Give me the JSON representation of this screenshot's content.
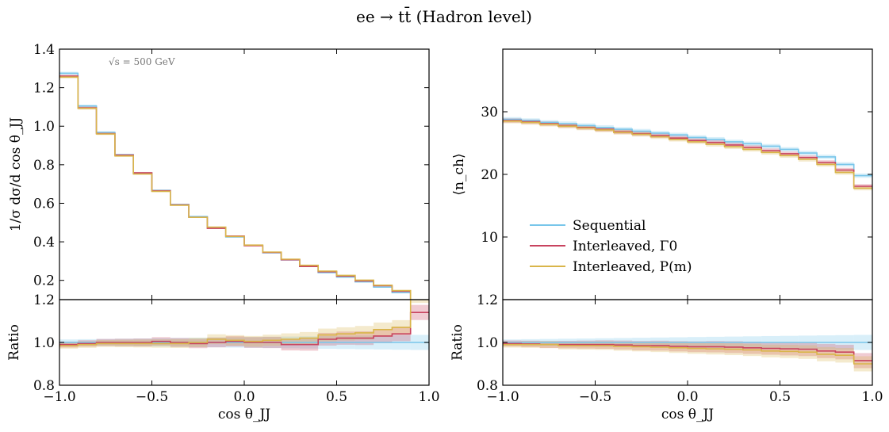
{
  "figure": {
    "title": "ee → tt̄ (Hadron level)"
  },
  "legend": [
    {
      "name": "Sequential",
      "color": "#78c6ea"
    },
    {
      "name": "Interleaved, Γ0",
      "color": "#c8435f"
    },
    {
      "name": "Interleaved, P(m)",
      "color": "#d9b54a"
    }
  ],
  "chart_data": [
    {
      "type": "line",
      "panel": "left-top",
      "title": "",
      "xlabel": "",
      "ylabel": "1/σ dσ/d cos θ_JJ",
      "annotation": "√s = 500 GeV",
      "step": true,
      "xlim": [
        -1.0,
        1.0
      ],
      "ylim": [
        0.1,
        1.4
      ],
      "yticks": [
        "0.2",
        "0.4",
        "0.6",
        "0.8",
        "1.0",
        "1.2",
        "1.4"
      ],
      "yticks_values": [
        0.2,
        0.4,
        0.6,
        0.8,
        1.0,
        1.2,
        1.4
      ],
      "bin_edges": [
        -1.0,
        -0.9,
        -0.8,
        -0.7,
        -0.6,
        -0.5,
        -0.4,
        -0.3,
        -0.2,
        -0.1,
        0.0,
        0.1,
        0.2,
        0.3,
        0.4,
        0.5,
        0.6,
        0.7,
        0.8,
        0.9,
        1.0
      ],
      "series": [
        {
          "name": "Sequential",
          "values": [
            1.275,
            1.105,
            0.968,
            0.852,
            0.757,
            0.667,
            0.594,
            0.531,
            0.474,
            0.425,
            0.381,
            0.343,
            0.306,
            0.273,
            0.24,
            0.217,
            0.192,
            0.165,
            0.136,
            0.085
          ]
        },
        {
          "name": "Interleaved, Γ0",
          "values": [
            1.26,
            1.095,
            0.962,
            0.85,
            0.758,
            0.665,
            0.592,
            0.527,
            0.47,
            0.43,
            0.38,
            0.345,
            0.307,
            0.272,
            0.245,
            0.222,
            0.197,
            0.172,
            0.143,
            0.095
          ]
        },
        {
          "name": "Interleaved, P(m)",
          "values": [
            1.255,
            1.093,
            0.96,
            0.846,
            0.752,
            0.662,
            0.59,
            0.527,
            0.476,
            0.428,
            0.383,
            0.347,
            0.31,
            0.278,
            0.248,
            0.226,
            0.201,
            0.175,
            0.147,
            0.093
          ]
        }
      ]
    },
    {
      "type": "line",
      "panel": "left-bottom",
      "xlabel": "cos θ_JJ",
      "ylabel": "Ratio",
      "step": true,
      "xlim": [
        -1.0,
        1.0
      ],
      "ylim": [
        0.8,
        1.2
      ],
      "xticks": [
        "−1.0",
        "−0.5",
        "0.0",
        "0.5",
        "1.0"
      ],
      "xticks_values": [
        -1.0,
        -0.5,
        0.0,
        0.5,
        1.0
      ],
      "yticks": [
        "0.8",
        "1.0",
        "1.2"
      ],
      "yticks_values": [
        0.8,
        1.0,
        1.2
      ],
      "bin_edges": [
        -1.0,
        -0.9,
        -0.8,
        -0.7,
        -0.6,
        -0.5,
        -0.4,
        -0.3,
        -0.2,
        -0.1,
        0.0,
        0.1,
        0.2,
        0.3,
        0.4,
        0.5,
        0.6,
        0.7,
        0.8,
        0.9,
        1.0
      ],
      "series": [
        {
          "name": "Sequential",
          "values": [
            1.0,
            1.0,
            1.0,
            1.0,
            1.0,
            1.0,
            1.0,
            1.0,
            1.0,
            1.0,
            1.0,
            1.0,
            1.0,
            1.0,
            1.0,
            1.0,
            1.0,
            1.0,
            1.0,
            1.0
          ]
        },
        {
          "name": "Interleaved, Γ0",
          "values": [
            0.99,
            0.995,
            1.0,
            1.0,
            1.0,
            1.005,
            1.0,
            0.995,
            1.0,
            1.005,
            1.0,
            1.0,
            0.99,
            0.99,
            1.015,
            1.02,
            1.02,
            1.03,
            1.04,
            1.14
          ]
        },
        {
          "name": "Interleaved, P(m)",
          "values": [
            0.985,
            0.99,
            0.995,
            0.995,
            0.995,
            0.995,
            0.995,
            1.0,
            1.015,
            1.01,
            1.005,
            1.01,
            1.015,
            1.02,
            1.035,
            1.04,
            1.045,
            1.06,
            1.07,
            1.22
          ]
        }
      ]
    },
    {
      "type": "line",
      "panel": "right-top",
      "xlabel": "",
      "ylabel": "⟨n_ch⟩",
      "step": true,
      "xlim": [
        -1.0,
        1.0
      ],
      "ylim": [
        0,
        40
      ],
      "yticks": [
        "10",
        "20",
        "30"
      ],
      "yticks_values": [
        10,
        20,
        30
      ],
      "bin_edges": [
        -1.0,
        -0.9,
        -0.8,
        -0.7,
        -0.6,
        -0.5,
        -0.4,
        -0.3,
        -0.2,
        -0.1,
        0.0,
        0.1,
        0.2,
        0.3,
        0.4,
        0.5,
        0.6,
        0.7,
        0.8,
        0.9,
        1.0
      ],
      "series": [
        {
          "name": "Sequential",
          "values": [
            28.8,
            28.6,
            28.3,
            28.1,
            27.8,
            27.5,
            27.2,
            26.9,
            26.6,
            26.3,
            25.9,
            25.6,
            25.2,
            24.9,
            24.5,
            24.0,
            23.4,
            22.8,
            21.6,
            19.8
          ]
        },
        {
          "name": "Interleaved, Γ0",
          "values": [
            28.6,
            28.4,
            28.1,
            27.8,
            27.5,
            27.2,
            26.8,
            26.5,
            26.2,
            25.8,
            25.4,
            25.1,
            24.7,
            24.3,
            23.8,
            23.3,
            22.7,
            21.9,
            20.7,
            18.1
          ]
        },
        {
          "name": "Interleaved, P(m)",
          "values": [
            28.5,
            28.3,
            28.0,
            27.7,
            27.4,
            27.1,
            26.7,
            26.4,
            26.0,
            25.6,
            25.2,
            24.8,
            24.4,
            24.0,
            23.5,
            23.0,
            22.4,
            21.6,
            20.3,
            17.8
          ]
        }
      ]
    },
    {
      "type": "line",
      "panel": "right-bottom",
      "xlabel": "cos θ_JJ",
      "ylabel": "Ratio",
      "step": true,
      "xlim": [
        -1.0,
        1.0
      ],
      "ylim": [
        0.8,
        1.2
      ],
      "xticks": [
        "−1.0",
        "−0.5",
        "0.0",
        "0.5",
        "1.0"
      ],
      "xticks_values": [
        -1.0,
        -0.5,
        0.0,
        0.5,
        1.0
      ],
      "yticks": [
        "0.8",
        "1.0",
        "1.2"
      ],
      "yticks_values": [
        0.8,
        1.0,
        1.2
      ],
      "bin_edges": [
        -1.0,
        -0.9,
        -0.8,
        -0.7,
        -0.6,
        -0.5,
        -0.4,
        -0.3,
        -0.2,
        -0.1,
        0.0,
        0.1,
        0.2,
        0.3,
        0.4,
        0.5,
        0.6,
        0.7,
        0.8,
        0.9,
        1.0
      ],
      "series": [
        {
          "name": "Sequential",
          "values": [
            1.0,
            1.0,
            1.0,
            1.0,
            1.0,
            1.0,
            1.0,
            1.0,
            1.0,
            1.0,
            1.0,
            1.0,
            1.0,
            1.0,
            1.0,
            1.0,
            1.0,
            1.0,
            1.0,
            1.0
          ]
        },
        {
          "name": "Interleaved, Γ0",
          "values": [
            0.995,
            0.993,
            0.99,
            0.99,
            0.99,
            0.99,
            0.988,
            0.985,
            0.985,
            0.982,
            0.98,
            0.98,
            0.978,
            0.975,
            0.972,
            0.97,
            0.968,
            0.96,
            0.955,
            0.915
          ]
        },
        {
          "name": "Interleaved, P(m)",
          "values": [
            0.99,
            0.99,
            0.99,
            0.985,
            0.985,
            0.985,
            0.982,
            0.98,
            0.978,
            0.975,
            0.972,
            0.97,
            0.968,
            0.965,
            0.96,
            0.958,
            0.955,
            0.945,
            0.94,
            0.9
          ]
        }
      ]
    }
  ]
}
